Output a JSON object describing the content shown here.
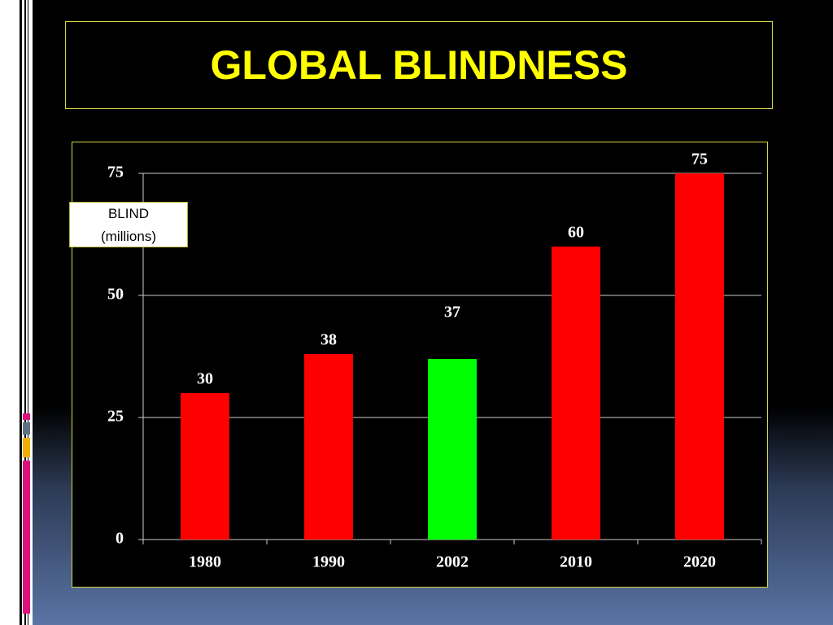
{
  "chart_data": {
    "type": "bar",
    "title": "GLOBAL BLINDNESS",
    "y_label": "BLIND (millions)",
    "categories": [
      "1980",
      "1990",
      "2002",
      "2010",
      "2020"
    ],
    "values": [
      30,
      38,
      37,
      60,
      75
    ],
    "colors": [
      "#ff0000",
      "#ff0000",
      "#00ff00",
      "#ff0000",
      "#ff0000"
    ],
    "ylim": [
      0,
      75
    ],
    "yticks": [
      0,
      25,
      50,
      75
    ],
    "grid": true
  }
}
